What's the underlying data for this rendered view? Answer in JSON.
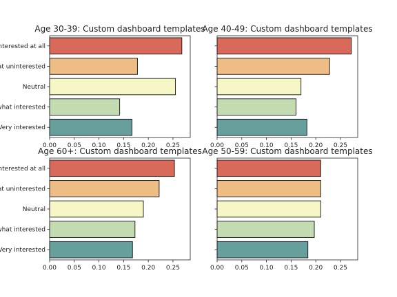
{
  "chart_data": [
    {
      "type": "bar",
      "orientation": "horizontal",
      "title": "Age 30-39: Custom dashboard templates",
      "categories": [
        "Not interested at all",
        "Somewhat uninterested",
        "Neutral",
        "Somewhat interested",
        "Very interested"
      ],
      "values": [
        0.268,
        0.178,
        0.255,
        0.142,
        0.167
      ],
      "xlim": [
        0,
        0.285
      ],
      "xticks": [
        "0.00",
        "0.05",
        "0.10",
        "0.15",
        "0.20",
        "0.25"
      ],
      "show_category_labels": true,
      "grid": false
    },
    {
      "type": "bar",
      "orientation": "horizontal",
      "title": "Age 40-49: Custom dashboard templates",
      "categories": [
        "Not interested at all",
        "Somewhat uninterested",
        "Neutral",
        "Somewhat interested",
        "Very interested"
      ],
      "values": [
        0.272,
        0.228,
        0.17,
        0.16,
        0.182
      ],
      "xlim": [
        0,
        0.285
      ],
      "xticks": [
        "0.00",
        "0.05",
        "0.10",
        "0.15",
        "0.20",
        "0.25"
      ],
      "show_category_labels": false,
      "grid": false
    },
    {
      "type": "bar",
      "orientation": "horizontal",
      "title": "Age 60+: Custom dashboard templates",
      "categories": [
        "Not interested at all",
        "Somewhat uninterested",
        "Neutral",
        "Somewhat interested",
        "Very interested"
      ],
      "values": [
        0.253,
        0.222,
        0.19,
        0.173,
        0.168
      ],
      "xlim": [
        0,
        0.285
      ],
      "xticks": [
        "0.00",
        "0.05",
        "0.10",
        "0.15",
        "0.20",
        "0.25"
      ],
      "show_category_labels": true,
      "grid": false
    },
    {
      "type": "bar",
      "orientation": "horizontal",
      "title": "Age 50-59: Custom dashboard templates",
      "categories": [
        "Not interested at all",
        "Somewhat uninterested",
        "Neutral",
        "Somewhat interested",
        "Very interested"
      ],
      "values": [
        0.21,
        0.21,
        0.21,
        0.197,
        0.184
      ],
      "xlim": [
        0,
        0.285
      ],
      "xticks": [
        "0.00",
        "0.05",
        "0.10",
        "0.15",
        "0.20",
        "0.25"
      ],
      "show_category_labels": false,
      "grid": false
    }
  ],
  "colors": [
    "#d9695a",
    "#edbd85",
    "#f7f6c6",
    "#c2dbb0",
    "#679f9c"
  ],
  "axis_color": "#222222",
  "bar_edge_color": "#111111"
}
